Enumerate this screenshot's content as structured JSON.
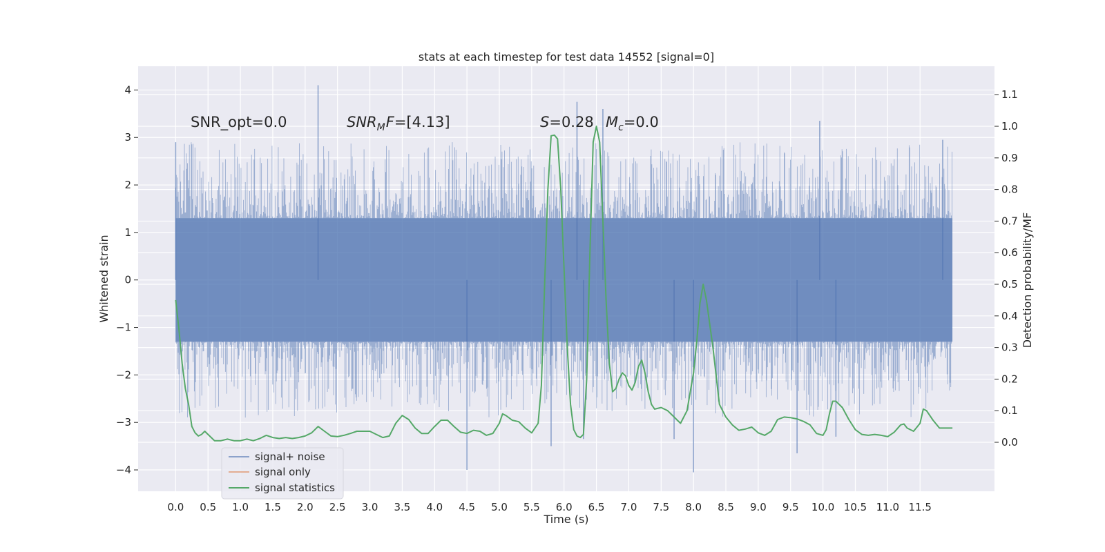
{
  "chart_data": {
    "type": "line",
    "title": "stats at each timestep for test data 14552 [signal=0]",
    "xlabel": "Time (s)",
    "ylabel": "Whitened strain",
    "y2label": "Detection probability/MF",
    "xlim": [
      -0.58,
      12.65
    ],
    "ylim": [
      -4.45,
      4.5
    ],
    "y2lim": [
      -0.155,
      1.19
    ],
    "x_ticks": [
      "0.0",
      "0.5",
      "1.0",
      "1.5",
      "2.0",
      "2.5",
      "3.0",
      "3.5",
      "4.0",
      "4.5",
      "5.0",
      "5.5",
      "6.0",
      "6.5",
      "7.0",
      "7.5",
      "8.0",
      "8.5",
      "9.0",
      "9.5",
      "10.0",
      "10.5",
      "11.0",
      "11.5"
    ],
    "y_ticks": [
      "−4",
      "−3",
      "−2",
      "−1",
      "0",
      "1",
      "2",
      "3",
      "4"
    ],
    "y2_ticks": [
      "0.0",
      "0.1",
      "0.2",
      "0.3",
      "0.4",
      "0.5",
      "0.6",
      "0.7",
      "0.8",
      "0.9",
      "1.0",
      "1.1"
    ],
    "grid": true,
    "legend_position": "lower-left",
    "annotations": {
      "snr_opt": "SNR_opt=0.0",
      "snr_mf_main": "SNR",
      "snr_mf_sub": "M",
      "snr_mf_rest": "F=[4.13]",
      "s_var": "S",
      "s_val": "=0.28",
      "mc_var": "M",
      "mc_sub": "c",
      "mc_val": "=0.0"
    },
    "series": [
      {
        "name": "signal+ noise",
        "color": "#4c72b0",
        "axis": "left",
        "x_range": [
          0.0,
          12.0
        ],
        "envelope": {
          "core_low": -1.3,
          "core_high": 1.3,
          "max_peak": 4.1,
          "min_trough": -4.05
        },
        "notable_peaks": [
          [
            0.0,
            2.9
          ],
          [
            2.2,
            4.1
          ],
          [
            6.2,
            3.75
          ],
          [
            6.6,
            3.6
          ],
          [
            9.95,
            3.35
          ],
          [
            11.85,
            2.95
          ]
        ],
        "notable_troughs": [
          [
            4.5,
            -4.0
          ],
          [
            5.8,
            -3.5
          ],
          [
            6.3,
            -3.35
          ],
          [
            7.7,
            -3.35
          ],
          [
            8.0,
            -4.05
          ],
          [
            9.6,
            -3.65
          ],
          [
            10.2,
            -3.3
          ]
        ]
      },
      {
        "name": "signal only",
        "color": "#dd8452",
        "axis": "left",
        "values": []
      },
      {
        "name": "signal statistics",
        "color": "#55a868",
        "axis": "right",
        "points": [
          [
            0.0,
            0.45
          ],
          [
            0.05,
            0.36
          ],
          [
            0.1,
            0.25
          ],
          [
            0.15,
            0.17
          ],
          [
            0.2,
            0.12
          ],
          [
            0.25,
            0.05
          ],
          [
            0.3,
            0.03
          ],
          [
            0.35,
            0.02
          ],
          [
            0.4,
            0.025
          ],
          [
            0.45,
            0.035
          ],
          [
            0.5,
            0.025
          ],
          [
            0.55,
            0.015
          ],
          [
            0.6,
            0.005
          ],
          [
            0.7,
            0.005
          ],
          [
            0.8,
            0.01
          ],
          [
            0.9,
            0.005
          ],
          [
            1.0,
            0.005
          ],
          [
            1.1,
            0.01
          ],
          [
            1.2,
            0.005
          ],
          [
            1.3,
            0.012
          ],
          [
            1.4,
            0.022
          ],
          [
            1.5,
            0.015
          ],
          [
            1.6,
            0.012
          ],
          [
            1.7,
            0.015
          ],
          [
            1.8,
            0.012
          ],
          [
            1.9,
            0.015
          ],
          [
            2.0,
            0.02
          ],
          [
            2.1,
            0.03
          ],
          [
            2.2,
            0.05
          ],
          [
            2.3,
            0.035
          ],
          [
            2.4,
            0.02
          ],
          [
            2.5,
            0.018
          ],
          [
            2.6,
            0.022
          ],
          [
            2.7,
            0.028
          ],
          [
            2.8,
            0.035
          ],
          [
            2.9,
            0.035
          ],
          [
            3.0,
            0.035
          ],
          [
            3.1,
            0.025
          ],
          [
            3.2,
            0.015
          ],
          [
            3.3,
            0.02
          ],
          [
            3.4,
            0.06
          ],
          [
            3.5,
            0.085
          ],
          [
            3.6,
            0.072
          ],
          [
            3.7,
            0.045
          ],
          [
            3.8,
            0.028
          ],
          [
            3.9,
            0.028
          ],
          [
            4.0,
            0.05
          ],
          [
            4.1,
            0.07
          ],
          [
            4.2,
            0.07
          ],
          [
            4.3,
            0.05
          ],
          [
            4.4,
            0.032
          ],
          [
            4.5,
            0.028
          ],
          [
            4.6,
            0.038
          ],
          [
            4.7,
            0.035
          ],
          [
            4.8,
            0.022
          ],
          [
            4.9,
            0.028
          ],
          [
            5.0,
            0.06
          ],
          [
            5.05,
            0.09
          ],
          [
            5.1,
            0.085
          ],
          [
            5.2,
            0.07
          ],
          [
            5.3,
            0.065
          ],
          [
            5.4,
            0.045
          ],
          [
            5.5,
            0.03
          ],
          [
            5.6,
            0.06
          ],
          [
            5.65,
            0.18
          ],
          [
            5.7,
            0.5
          ],
          [
            5.75,
            0.8
          ],
          [
            5.8,
            0.97
          ],
          [
            5.85,
            0.972
          ],
          [
            5.9,
            0.96
          ],
          [
            5.95,
            0.8
          ],
          [
            6.0,
            0.55
          ],
          [
            6.05,
            0.3
          ],
          [
            6.1,
            0.12
          ],
          [
            6.15,
            0.04
          ],
          [
            6.2,
            0.02
          ],
          [
            6.25,
            0.015
          ],
          [
            6.3,
            0.025
          ],
          [
            6.35,
            0.2
          ],
          [
            6.4,
            0.6
          ],
          [
            6.45,
            0.95
          ],
          [
            6.5,
            1.0
          ],
          [
            6.55,
            0.95
          ],
          [
            6.6,
            0.7
          ],
          [
            6.65,
            0.45
          ],
          [
            6.7,
            0.25
          ],
          [
            6.75,
            0.16
          ],
          [
            6.8,
            0.17
          ],
          [
            6.85,
            0.2
          ],
          [
            6.9,
            0.22
          ],
          [
            6.95,
            0.21
          ],
          [
            7.0,
            0.18
          ],
          [
            7.05,
            0.165
          ],
          [
            7.1,
            0.19
          ],
          [
            7.15,
            0.24
          ],
          [
            7.2,
            0.26
          ],
          [
            7.25,
            0.22
          ],
          [
            7.3,
            0.16
          ],
          [
            7.35,
            0.12
          ],
          [
            7.4,
            0.105
          ],
          [
            7.5,
            0.11
          ],
          [
            7.6,
            0.1
          ],
          [
            7.7,
            0.08
          ],
          [
            7.75,
            0.07
          ],
          [
            7.8,
            0.06
          ],
          [
            7.9,
            0.1
          ],
          [
            8.0,
            0.22
          ],
          [
            8.05,
            0.32
          ],
          [
            8.1,
            0.44
          ],
          [
            8.15,
            0.5
          ],
          [
            8.2,
            0.45
          ],
          [
            8.3,
            0.3
          ],
          [
            8.4,
            0.12
          ],
          [
            8.5,
            0.08
          ],
          [
            8.6,
            0.055
          ],
          [
            8.7,
            0.038
          ],
          [
            8.8,
            0.042
          ],
          [
            8.9,
            0.048
          ],
          [
            9.0,
            0.03
          ],
          [
            9.1,
            0.022
          ],
          [
            9.2,
            0.035
          ],
          [
            9.3,
            0.072
          ],
          [
            9.4,
            0.08
          ],
          [
            9.5,
            0.078
          ],
          [
            9.6,
            0.074
          ],
          [
            9.7,
            0.066
          ],
          [
            9.8,
            0.055
          ],
          [
            9.9,
            0.028
          ],
          [
            10.0,
            0.022
          ],
          [
            10.05,
            0.04
          ],
          [
            10.1,
            0.09
          ],
          [
            10.15,
            0.13
          ],
          [
            10.2,
            0.13
          ],
          [
            10.3,
            0.11
          ],
          [
            10.4,
            0.072
          ],
          [
            10.5,
            0.04
          ],
          [
            10.6,
            0.025
          ],
          [
            10.7,
            0.022
          ],
          [
            10.8,
            0.025
          ],
          [
            10.9,
            0.022
          ],
          [
            11.0,
            0.018
          ],
          [
            11.1,
            0.032
          ],
          [
            11.2,
            0.055
          ],
          [
            11.25,
            0.058
          ],
          [
            11.3,
            0.045
          ],
          [
            11.4,
            0.035
          ],
          [
            11.5,
            0.06
          ],
          [
            11.55,
            0.105
          ],
          [
            11.6,
            0.1
          ],
          [
            11.7,
            0.07
          ],
          [
            11.8,
            0.045
          ],
          [
            11.9,
            0.045
          ],
          [
            12.0,
            0.045
          ]
        ]
      }
    ]
  }
}
